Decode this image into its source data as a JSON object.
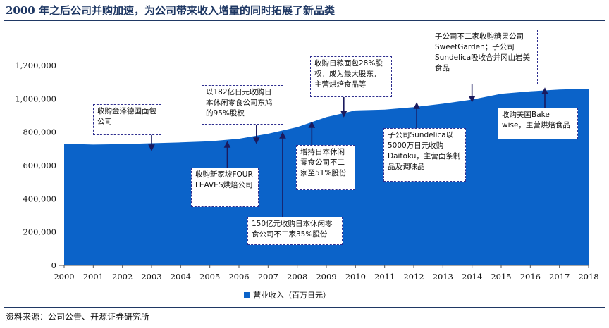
{
  "header": {
    "title": "2000 年之后公司并购加速，为公司带来收入增量的同时拓展了新品类"
  },
  "footer": {
    "source": "资料来源：公司公告、开源证券研究所"
  },
  "colors": {
    "area": "#0b63c9",
    "title": "#1f3864",
    "annotation_border": "#2e2e8f",
    "arrow": "#1a1a5e"
  },
  "chart_data": {
    "type": "area",
    "title": "",
    "xlabel": "",
    "ylabel": "",
    "x": [
      2000,
      2001,
      2002,
      2003,
      2004,
      2005,
      2006,
      2007,
      2008,
      2009,
      2010,
      2011,
      2012,
      2013,
      2014,
      2015,
      2016,
      2017,
      2018
    ],
    "x_tick_labels": [
      "2000",
      "2001",
      "2002",
      "2003",
      "2004",
      "2005",
      "2006",
      "2007",
      "2008",
      "2009",
      "2010",
      "2011",
      "2012",
      "2013",
      "2014",
      "2015",
      "2016",
      "2017",
      "2018"
    ],
    "ylim": [
      0,
      1200000
    ],
    "y_ticks": [
      0,
      200000,
      400000,
      600000,
      800000,
      1000000,
      1200000
    ],
    "y_tick_labels": [
      "0",
      "200,000",
      "400,000",
      "600,000",
      "800,000",
      "1,000,000",
      "1,200,000"
    ],
    "grid": false,
    "legend_position": "bottom",
    "series": [
      {
        "name": "营业收入（百万日元）",
        "values": [
          730000,
          725000,
          728000,
          733000,
          738000,
          745000,
          760000,
          790000,
          830000,
          890000,
          930000,
          935000,
          950000,
          970000,
          995000,
          1030000,
          1045000,
          1055000,
          1060000
        ]
      }
    ],
    "annotations": [
      {
        "text": "收购金泽德国面包公司",
        "year": 2003,
        "value": 730000,
        "direction": "down"
      },
      {
        "text": "收购新家坡FOUR LEAVES烘焙公司",
        "year": 2005.6,
        "value": 745000,
        "direction": "up"
      },
      {
        "text": "以182亿日元收购日本休闲零食公司东鸠的95%股权",
        "year": 2006.6,
        "value": 760000,
        "direction": "down"
      },
      {
        "text": "150亿元收购日本休闲零食公司不二家35%股份",
        "year": 2007.5,
        "value": 790000,
        "direction": "up"
      },
      {
        "text": "增持日本休闲零食公司不二家至51%股份",
        "year": 2008.5,
        "value": 840000,
        "direction": "up"
      },
      {
        "text": "收购日粮面包28%股权，成为最大股东，主营烘焙食品等",
        "year": 2009.6,
        "value": 900000,
        "direction": "down"
      },
      {
        "text": "子公司Sundelica以5000万日元收购Daitoku，主营面条制品及调味品",
        "year": 2012.1,
        "value": 950000,
        "direction": "up"
      },
      {
        "text": "子公司不二家收购糖果公司SweetGarden；子公司Sundelica吸收合并冈山岩美食品",
        "year": 2014,
        "value": 995000,
        "direction": "down"
      },
      {
        "text": "收购美国Bake wise，主营烘焙食品",
        "year": 2016.5,
        "value": 1050000,
        "direction": "up"
      }
    ]
  },
  "legend": {
    "label": "营业收入（百万日元）"
  }
}
